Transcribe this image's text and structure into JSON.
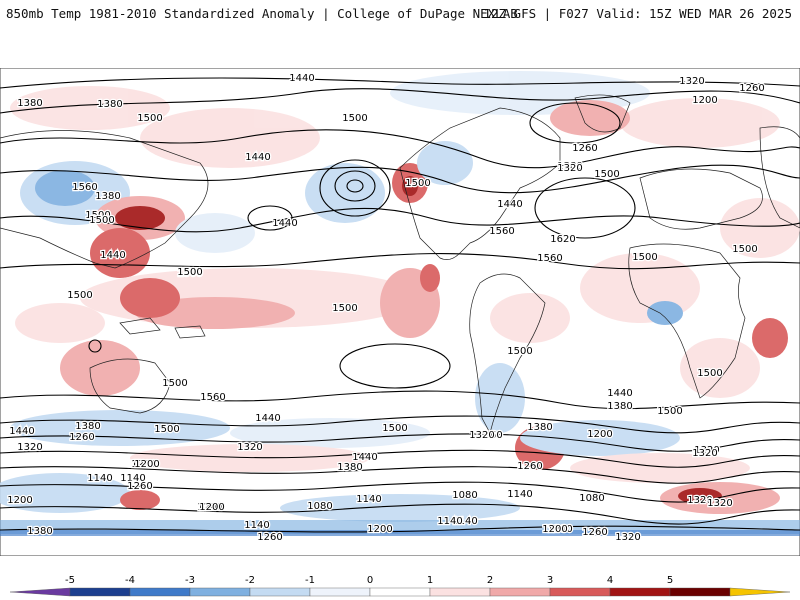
{
  "header": {
    "left": "850mb Temp 1981-2010 Standardized Anomaly | College of DuPage NEXLAB",
    "right": "12Z GFS | F027 Valid: 15Z WED MAR 26 2025"
  },
  "contour_labels": [
    "1440",
    "1320",
    "1260",
    "1200",
    "1380",
    "1380",
    "1500",
    "1440",
    "1500",
    "1560",
    "1380",
    "1500",
    "1440",
    "1500",
    "1500",
    "1440",
    "1500",
    "1380",
    "1260",
    "1320",
    "1500",
    "1440",
    "1560",
    "1620",
    "1500",
    "1500",
    "1560",
    "1500",
    "1500",
    "1500",
    "1440",
    "1380",
    "1500",
    "1500",
    "1560",
    "1500",
    "1500",
    "1500",
    "1500",
    "1440",
    "1380",
    "1320",
    "1440",
    "1380",
    "1260",
    "1200",
    "1320",
    "1320",
    "1200",
    "1260",
    "1380",
    "1440",
    "1320",
    "1200",
    "1260",
    "1320",
    "1140",
    "1140",
    "1260",
    "1200",
    "1200",
    "1320",
    "1080",
    "1200",
    "1140",
    "1080",
    "1140",
    "1080",
    "1140",
    "1320",
    "1380",
    "1140",
    "1200",
    "1140",
    "1200",
    "1260",
    "1320",
    "1260",
    "1200",
    "1260"
  ],
  "colorbar": {
    "ticks": [
      "-5",
      "-4",
      "-3",
      "-2",
      "-1",
      "0",
      "1",
      "2",
      "3",
      "4",
      "5"
    ],
    "colors": [
      "#6a3aa0",
      "#1c3f8f",
      "#3f7ac9",
      "#7fb0e0",
      "#c4dbf2",
      "#eef3fb",
      "#ffffff",
      "#fbe1e1",
      "#f0a9a9",
      "#d85a5a",
      "#a11414",
      "#6a0000",
      "#f5c400"
    ]
  }
}
